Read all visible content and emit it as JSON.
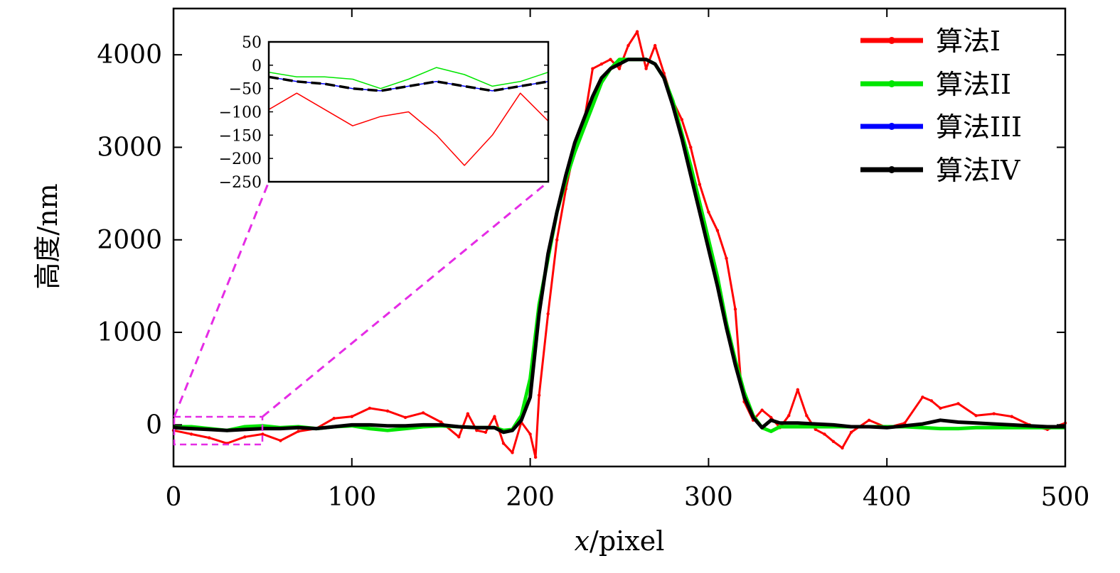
{
  "chart_data": {
    "type": "line",
    "xlabel_var": "x",
    "xlabel_unit": "/pixel",
    "ylabel": "高度/nm",
    "xlim": [
      0,
      500
    ],
    "ylim": [
      -450,
      4500
    ],
    "xticks": [
      "0",
      "100",
      "200",
      "300",
      "400",
      "500"
    ],
    "yticks": [
      "0",
      "1000",
      "2000",
      "3000",
      "4000"
    ],
    "legend_position": "top-right",
    "series": [
      {
        "name": "算法I",
        "color": "#ff0000",
        "x": [
          0,
          10,
          20,
          30,
          40,
          50,
          60,
          70,
          80,
          90,
          100,
          110,
          120,
          130,
          140,
          150,
          160,
          165,
          170,
          175,
          180,
          185,
          190,
          195,
          200,
          203,
          205,
          210,
          215,
          220,
          225,
          230,
          235,
          240,
          245,
          250,
          255,
          260,
          265,
          270,
          275,
          280,
          285,
          290,
          295,
          300,
          305,
          310,
          315,
          318,
          320,
          325,
          330,
          335,
          340,
          345,
          350,
          355,
          360,
          365,
          370,
          375,
          380,
          390,
          400,
          410,
          420,
          425,
          430,
          440,
          450,
          460,
          470,
          480,
          490,
          500
        ],
        "y": [
          -60,
          -100,
          -140,
          -200,
          -130,
          -100,
          -170,
          -70,
          -40,
          70,
          90,
          180,
          150,
          80,
          130,
          30,
          -130,
          120,
          -60,
          -80,
          90,
          -200,
          -300,
          30,
          -100,
          -350,
          320,
          1200,
          2000,
          2550,
          3000,
          3250,
          3850,
          3900,
          3950,
          3850,
          4100,
          4250,
          3850,
          4100,
          3800,
          3500,
          3300,
          3000,
          2600,
          2300,
          2100,
          1800,
          1250,
          500,
          250,
          50,
          160,
          80,
          -30,
          100,
          380,
          100,
          -50,
          -100,
          -180,
          -250,
          -80,
          50,
          -30,
          20,
          300,
          260,
          180,
          230,
          100,
          120,
          90,
          0,
          -50,
          20
        ]
      },
      {
        "name": "算法II",
        "color": "#00e600",
        "x": [
          0,
          10,
          20,
          30,
          40,
          50,
          60,
          70,
          80,
          90,
          100,
          110,
          120,
          130,
          140,
          150,
          160,
          170,
          180,
          185,
          190,
          195,
          200,
          205,
          210,
          215,
          220,
          225,
          230,
          235,
          240,
          245,
          250,
          255,
          260,
          265,
          270,
          275,
          280,
          285,
          290,
          295,
          300,
          305,
          310,
          315,
          320,
          325,
          330,
          335,
          340,
          350,
          360,
          370,
          380,
          390,
          400,
          410,
          420,
          430,
          440,
          450,
          460,
          470,
          480,
          490,
          500
        ],
        "y": [
          -20,
          -20,
          -40,
          -60,
          -20,
          -10,
          -30,
          -20,
          -40,
          -20,
          -10,
          -40,
          -60,
          -40,
          -20,
          -10,
          -20,
          -30,
          -30,
          -60,
          -50,
          100,
          500,
          1300,
          1800,
          2300,
          2650,
          2950,
          3200,
          3450,
          3700,
          3850,
          3950,
          3950,
          3950,
          3950,
          3900,
          3750,
          3500,
          3150,
          2800,
          2400,
          2000,
          1600,
          1100,
          700,
          350,
          100,
          -30,
          -70,
          -20,
          -20,
          -20,
          -20,
          -20,
          -20,
          -20,
          -20,
          -30,
          -40,
          -40,
          -30,
          -30,
          -30,
          -30,
          -30,
          -30
        ]
      },
      {
        "name": "算法III",
        "color": "#0000ff",
        "x": [
          0,
          10,
          20,
          30,
          40,
          50,
          60,
          70,
          80,
          90,
          100,
          110,
          120,
          130,
          140,
          150,
          160,
          170,
          180,
          185,
          190,
          195,
          200,
          205,
          210,
          215,
          220,
          225,
          230,
          235,
          240,
          245,
          250,
          255,
          260,
          265,
          270,
          275,
          280,
          285,
          290,
          295,
          300,
          305,
          310,
          315,
          320,
          325,
          330,
          335,
          340,
          350,
          360,
          370,
          380,
          390,
          400,
          410,
          420,
          430,
          440,
          450,
          460,
          470,
          480,
          490,
          500
        ],
        "y": [
          -30,
          -40,
          -50,
          -60,
          -50,
          -40,
          -40,
          -30,
          -40,
          -20,
          0,
          0,
          -10,
          -10,
          0,
          0,
          -20,
          -30,
          -30,
          -80,
          -60,
          50,
          300,
          1200,
          1850,
          2300,
          2700,
          3050,
          3300,
          3550,
          3750,
          3850,
          3900,
          3950,
          3950,
          3950,
          3900,
          3750,
          3450,
          3100,
          2700,
          2300,
          1900,
          1500,
          1050,
          650,
          300,
          80,
          -30,
          50,
          20,
          20,
          10,
          0,
          -20,
          -20,
          -30,
          -10,
          10,
          50,
          30,
          20,
          10,
          0,
          -10,
          -20,
          -20
        ]
      },
      {
        "name": "算法IV",
        "color": "#000000",
        "x": [
          0,
          10,
          20,
          30,
          40,
          50,
          60,
          70,
          80,
          90,
          100,
          110,
          120,
          130,
          140,
          150,
          160,
          170,
          180,
          185,
          190,
          195,
          200,
          205,
          210,
          215,
          220,
          225,
          230,
          235,
          240,
          245,
          250,
          255,
          260,
          265,
          270,
          275,
          280,
          285,
          290,
          295,
          300,
          305,
          310,
          315,
          320,
          325,
          330,
          335,
          340,
          350,
          360,
          370,
          380,
          390,
          400,
          410,
          420,
          430,
          440,
          450,
          460,
          470,
          480,
          490,
          500
        ],
        "y": [
          -30,
          -40,
          -50,
          -60,
          -50,
          -40,
          -40,
          -30,
          -40,
          -20,
          0,
          0,
          -10,
          -10,
          0,
          0,
          -20,
          -30,
          -30,
          -80,
          -60,
          50,
          300,
          1200,
          1850,
          2300,
          2700,
          3050,
          3300,
          3550,
          3750,
          3850,
          3900,
          3950,
          3950,
          3950,
          3900,
          3750,
          3450,
          3100,
          2700,
          2300,
          1900,
          1500,
          1050,
          650,
          300,
          80,
          -30,
          50,
          20,
          20,
          10,
          0,
          -20,
          -20,
          -30,
          -10,
          10,
          50,
          30,
          20,
          10,
          0,
          -10,
          -20,
          -20
        ]
      }
    ],
    "inset": {
      "xlim": [
        0,
        50
      ],
      "ylim": [
        -250,
        50
      ],
      "yticks": [
        "50",
        "0",
        "−50",
        "−100",
        "−150",
        "−200",
        "−250"
      ],
      "series": [
        {
          "name": "算法I",
          "color": "#ff0000",
          "x": [
            0,
            5,
            10,
            15,
            20,
            25,
            30,
            35,
            40,
            45,
            50
          ],
          "y": [
            -95,
            -60,
            -95,
            -130,
            -110,
            -100,
            -150,
            -215,
            -150,
            -60,
            -120
          ]
        },
        {
          "name": "算法II",
          "color": "#00e600",
          "x": [
            0,
            5,
            10,
            15,
            20,
            25,
            30,
            35,
            40,
            45,
            50
          ],
          "y": [
            -15,
            -25,
            -25,
            -30,
            -50,
            -30,
            -5,
            -20,
            -45,
            -35,
            -15
          ]
        },
        {
          "name": "算法III",
          "color": "#0000ff",
          "x": [
            0,
            5,
            10,
            15,
            20,
            25,
            30,
            35,
            40,
            45,
            50
          ],
          "y": [
            -25,
            -35,
            -40,
            -50,
            -55,
            -45,
            -35,
            -45,
            -55,
            -45,
            -35
          ]
        },
        {
          "name": "算法IV",
          "color": "#000000",
          "x": [
            0,
            5,
            10,
            15,
            20,
            25,
            30,
            35,
            40,
            45,
            50
          ],
          "y": [
            -25,
            -35,
            -40,
            -50,
            -55,
            -45,
            -35,
            -45,
            -55,
            -45,
            -35
          ],
          "dashed": true
        }
      ]
    }
  }
}
